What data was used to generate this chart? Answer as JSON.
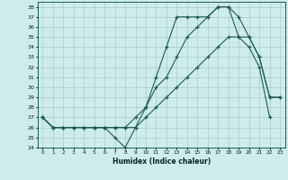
{
  "xlabel": "Humidex (Indice chaleur)",
  "background_color": "#ceecea",
  "grid_color": "#a8ccc8",
  "line_color": "#1a5c50",
  "xlim": [
    -0.5,
    23.5
  ],
  "ylim": [
    24,
    38.5
  ],
  "xticks": [
    0,
    1,
    2,
    3,
    4,
    5,
    6,
    7,
    8,
    9,
    10,
    11,
    12,
    13,
    14,
    15,
    16,
    17,
    18,
    19,
    20,
    21,
    22,
    23
  ],
  "yticks": [
    24,
    25,
    26,
    27,
    28,
    29,
    30,
    31,
    32,
    33,
    34,
    35,
    36,
    37,
    38
  ],
  "series1_x": [
    0,
    1,
    2,
    3,
    4,
    5,
    6,
    7,
    8,
    9,
    10,
    11,
    12,
    13,
    14,
    15,
    16,
    17,
    18,
    19,
    20,
    21,
    22
  ],
  "series1_y": [
    27,
    26,
    26,
    26,
    26,
    26,
    26,
    25,
    24,
    26,
    28,
    31,
    34,
    37,
    37,
    37,
    37,
    38,
    38,
    35,
    34,
    32,
    27
  ],
  "series2_x": [
    0,
    1,
    2,
    3,
    4,
    5,
    6,
    7,
    8,
    9,
    10,
    11,
    12,
    13,
    14,
    15,
    16,
    17,
    18,
    19,
    20,
    21,
    22,
    23
  ],
  "series2_y": [
    27,
    26,
    26,
    26,
    26,
    26,
    26,
    26,
    26,
    27,
    28,
    30,
    31,
    33,
    35,
    36,
    37,
    38,
    38,
    37,
    35,
    33,
    29,
    29
  ],
  "series3_x": [
    0,
    1,
    2,
    3,
    4,
    5,
    6,
    7,
    8,
    9,
    10,
    11,
    12,
    13,
    14,
    15,
    16,
    17,
    18,
    19,
    20,
    21,
    22,
    23
  ],
  "series3_y": [
    27,
    26,
    26,
    26,
    26,
    26,
    26,
    26,
    26,
    26,
    27,
    28,
    29,
    30,
    31,
    32,
    33,
    34,
    35,
    35,
    35,
    33,
    29,
    29
  ]
}
